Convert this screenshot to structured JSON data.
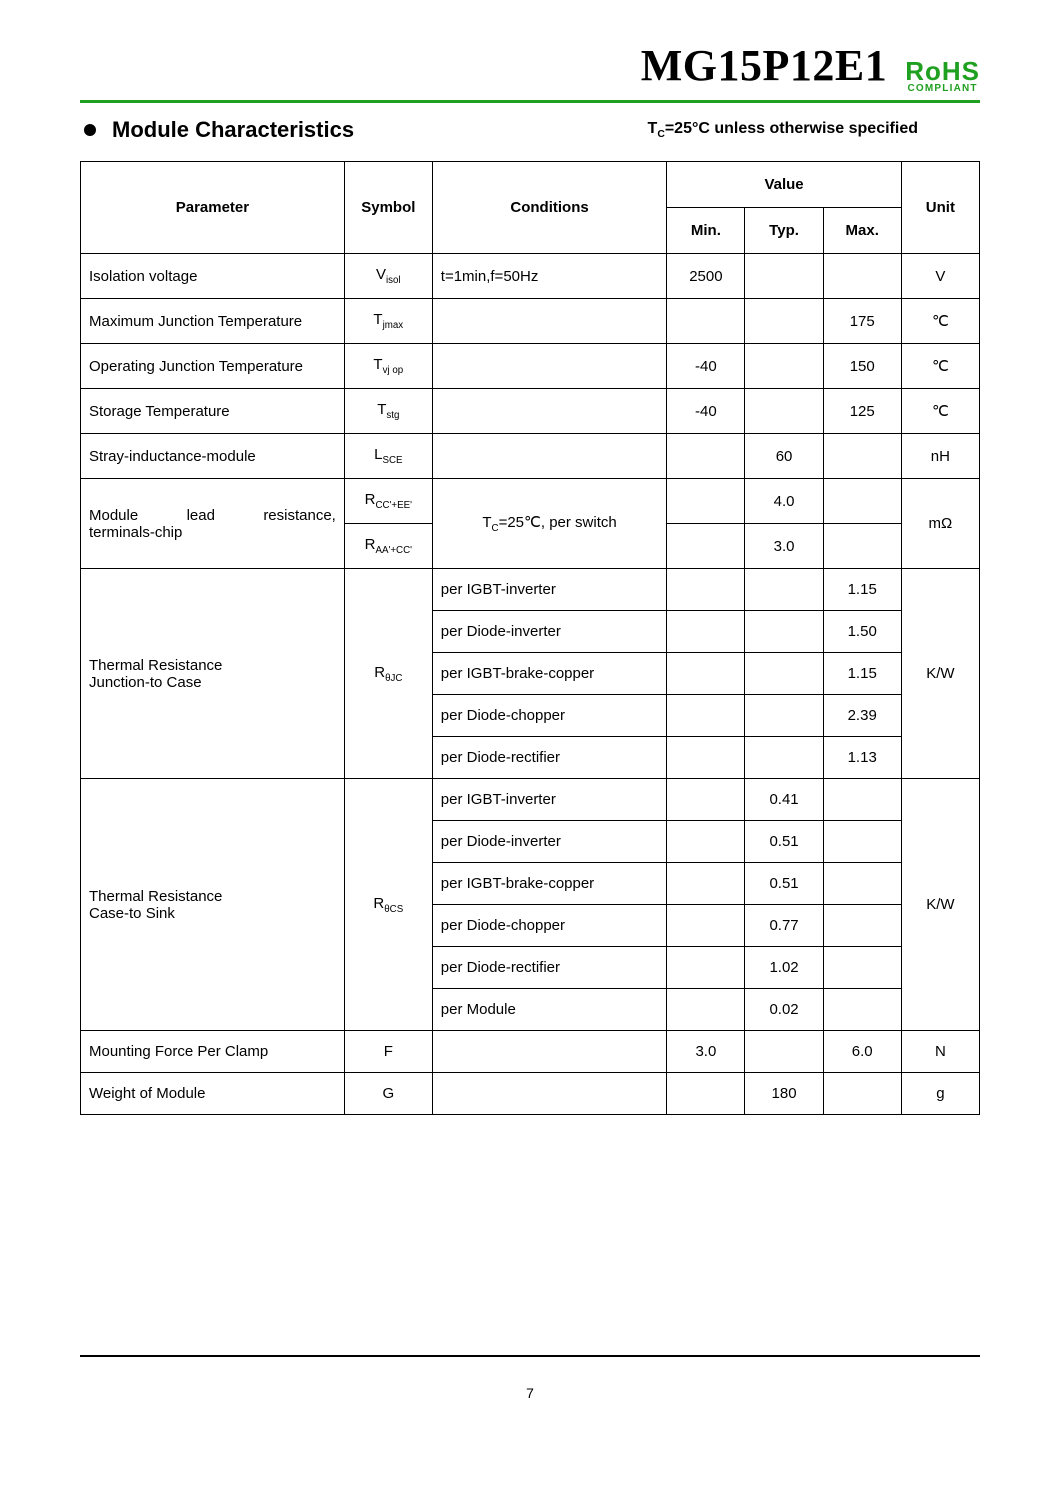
{
  "header": {
    "part_number": "MG15P12E1",
    "rohs_main": "RoHS",
    "rohs_sub": "COMPLIANT"
  },
  "section": {
    "title": "Module Characteristics",
    "note_prefix": "T",
    "note_sub": "C",
    "note_rest": "=25°C unless otherwise specified"
  },
  "table": {
    "headers": {
      "parameter": "Parameter",
      "symbol": "Symbol",
      "conditions": "Conditions",
      "value": "Value",
      "min": "Min.",
      "typ": "Typ.",
      "max": "Max.",
      "unit": "Unit"
    },
    "rows": {
      "isolation": {
        "param": "Isolation voltage",
        "sym": "V",
        "sym_sub": "isol",
        "cond": "t=1min,f=50Hz",
        "min": "2500",
        "typ": "",
        "max": "",
        "unit": "V"
      },
      "tjmax": {
        "param": "Maximum Junction Temperature",
        "sym": "T",
        "sym_sub": "jmax",
        "cond": "",
        "min": "",
        "typ": "",
        "max": "175",
        "unit": "℃"
      },
      "tvjop": {
        "param": "Operating Junction Temperature",
        "sym": "T",
        "sym_sub": "vj op",
        "cond": "",
        "min": "-40",
        "typ": "",
        "max": "150",
        "unit": "℃"
      },
      "tstg": {
        "param": "Storage Temperature",
        "sym": "T",
        "sym_sub": "stg",
        "cond": "",
        "min": "-40",
        "typ": "",
        "max": "125",
        "unit": "℃"
      },
      "lsce": {
        "param": "Stray-inductance-module",
        "sym": "L",
        "sym_sub": "SCE",
        "cond": "",
        "min": "",
        "typ": "60",
        "max": "",
        "unit": "nH"
      },
      "mlead": {
        "param1": "Module",
        "param2": "lead",
        "param3": "resistance,",
        "param_line2": "terminals-chip",
        "sym1": "R",
        "sym1_sub": "CC'+EE'",
        "sym2": "R",
        "sym2_sub": "AA'+CC'",
        "cond_prefix": "T",
        "cond_sub": "C",
        "cond_rest": "=25℃, per switch",
        "typ1": "4.0",
        "typ2": "3.0",
        "unit": "mΩ"
      },
      "rthjc": {
        "param1": "Thermal Resistance",
        "param2": "Junction-to Case",
        "sym_pre": "R",
        "sym_sub": "θJC",
        "c1": "per IGBT-inverter",
        "m1": "1.15",
        "c2": "per Diode-inverter",
        "m2": "1.50",
        "c3": "per IGBT-brake-copper",
        "m3": "1.15",
        "c4": "per Diode-chopper",
        "m4": "2.39",
        "c5": "per Diode-rectifier",
        "m5": "1.13",
        "unit": "K/W"
      },
      "rthcs": {
        "param1": "Thermal Resistance",
        "param2": "Case-to Sink",
        "sym_pre": "R",
        "sym_sub": "θCS",
        "c1": "per IGBT-inverter",
        "t1": "0.41",
        "c2": "per Diode-inverter",
        "t2": "0.51",
        "c3": "per IGBT-brake-copper",
        "t3": "0.51",
        "c4": "per Diode-chopper",
        "t4": "0.77",
        "c5": "per Diode-rectifier",
        "t5": "1.02",
        "c6": "per Module",
        "t6": "0.02",
        "unit": "K/W"
      },
      "force": {
        "param": "Mounting Force Per Clamp",
        "sym": "F",
        "min": "3.0",
        "typ": "",
        "max": "6.0",
        "unit": "N"
      },
      "weight": {
        "param": "Weight of Module",
        "sym": "G",
        "min": "",
        "typ": "180",
        "max": "",
        "unit": "g"
      }
    }
  },
  "footer": {
    "page": "7"
  }
}
